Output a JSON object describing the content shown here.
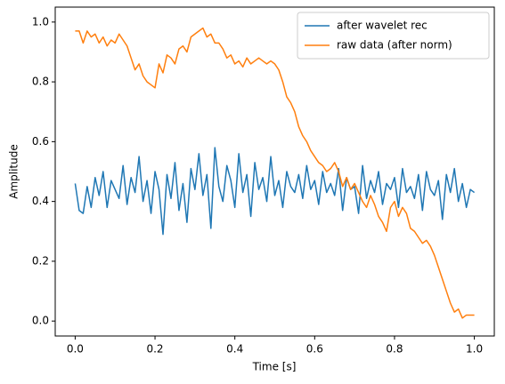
{
  "chart_data": {
    "type": "line",
    "xlabel": "Time [s]",
    "ylabel": "Amplitude",
    "x": [
      0,
      0.01,
      0.02,
      0.03,
      0.04,
      0.05,
      0.06,
      0.07,
      0.08,
      0.09,
      0.1,
      0.11,
      0.12,
      0.13,
      0.14,
      0.15,
      0.16,
      0.17,
      0.18,
      0.19,
      0.2,
      0.21,
      0.22,
      0.23,
      0.24,
      0.25,
      0.26,
      0.27,
      0.28,
      0.29,
      0.3,
      0.31,
      0.32,
      0.33,
      0.34,
      0.35,
      0.36,
      0.37,
      0.38,
      0.39,
      0.4,
      0.41,
      0.42,
      0.43,
      0.44,
      0.45,
      0.46,
      0.47,
      0.48,
      0.49,
      0.5,
      0.51,
      0.52,
      0.53,
      0.54,
      0.55,
      0.56,
      0.57,
      0.58,
      0.59,
      0.6,
      0.61,
      0.62,
      0.63,
      0.64,
      0.65,
      0.66,
      0.67,
      0.68,
      0.69,
      0.7,
      0.71,
      0.72,
      0.73,
      0.74,
      0.75,
      0.76,
      0.77,
      0.78,
      0.79,
      0.8,
      0.81,
      0.82,
      0.83,
      0.84,
      0.85,
      0.86,
      0.87,
      0.88,
      0.89,
      0.9,
      0.91,
      0.92,
      0.93,
      0.94,
      0.95,
      0.96,
      0.97,
      0.98,
      0.99,
      1
    ],
    "series": [
      {
        "name": "after wavelet rec",
        "color": "#1f77b4",
        "values": [
          0.46,
          0.37,
          0.36,
          0.45,
          0.38,
          0.48,
          0.42,
          0.5,
          0.38,
          0.47,
          0.44,
          0.41,
          0.52,
          0.39,
          0.48,
          0.43,
          0.55,
          0.4,
          0.47,
          0.36,
          0.5,
          0.44,
          0.29,
          0.49,
          0.41,
          0.53,
          0.37,
          0.46,
          0.33,
          0.51,
          0.44,
          0.56,
          0.42,
          0.49,
          0.31,
          0.58,
          0.45,
          0.4,
          0.52,
          0.47,
          0.38,
          0.56,
          0.43,
          0.49,
          0.35,
          0.53,
          0.44,
          0.48,
          0.4,
          0.55,
          0.42,
          0.47,
          0.38,
          0.5,
          0.45,
          0.43,
          0.49,
          0.41,
          0.52,
          0.44,
          0.47,
          0.39,
          0.5,
          0.43,
          0.46,
          0.42,
          0.51,
          0.37,
          0.48,
          0.44,
          0.45,
          0.36,
          0.52,
          0.41,
          0.47,
          0.43,
          0.5,
          0.39,
          0.46,
          0.44,
          0.48,
          0.38,
          0.51,
          0.43,
          0.45,
          0.41,
          0.49,
          0.37,
          0.5,
          0.44,
          0.42,
          0.47,
          0.34,
          0.49,
          0.43,
          0.51,
          0.4,
          0.46,
          0.38,
          0.44,
          0.43
        ]
      },
      {
        "name": "raw data (after norm)",
        "color": "#ff7f0e",
        "values": [
          0.97,
          0.97,
          0.93,
          0.97,
          0.95,
          0.96,
          0.93,
          0.95,
          0.92,
          0.94,
          0.93,
          0.96,
          0.94,
          0.92,
          0.88,
          0.84,
          0.86,
          0.82,
          0.8,
          0.79,
          0.78,
          0.86,
          0.83,
          0.89,
          0.88,
          0.86,
          0.91,
          0.92,
          0.9,
          0.95,
          0.96,
          0.97,
          0.98,
          0.95,
          0.96,
          0.93,
          0.93,
          0.91,
          0.88,
          0.89,
          0.86,
          0.87,
          0.85,
          0.88,
          0.86,
          0.87,
          0.88,
          0.87,
          0.86,
          0.87,
          0.86,
          0.84,
          0.8,
          0.75,
          0.73,
          0.7,
          0.65,
          0.62,
          0.6,
          0.57,
          0.55,
          0.53,
          0.52,
          0.5,
          0.51,
          0.53,
          0.5,
          0.45,
          0.48,
          0.44,
          0.46,
          0.43,
          0.4,
          0.38,
          0.42,
          0.39,
          0.35,
          0.33,
          0.3,
          0.38,
          0.4,
          0.35,
          0.38,
          0.36,
          0.31,
          0.3,
          0.28,
          0.26,
          0.27,
          0.25,
          0.22,
          0.18,
          0.14,
          0.1,
          0.06,
          0.03,
          0.04,
          0.01,
          0.02,
          0.02,
          0.02
        ]
      }
    ],
    "xlim": [
      -0.05,
      1.05
    ],
    "ylim": [
      -0.05,
      1.05
    ],
    "xticks": [
      {
        "value": 0,
        "label": "0.0"
      },
      0.2,
      0.4,
      0.6,
      0.8,
      {
        "value": 1,
        "label": "1.0"
      }
    ],
    "yticks": [
      {
        "value": 0,
        "label": "0.0"
      },
      0.2,
      0.4,
      0.6,
      0.8,
      {
        "value": 1,
        "label": "1.0"
      }
    ],
    "legend": "upper right"
  }
}
